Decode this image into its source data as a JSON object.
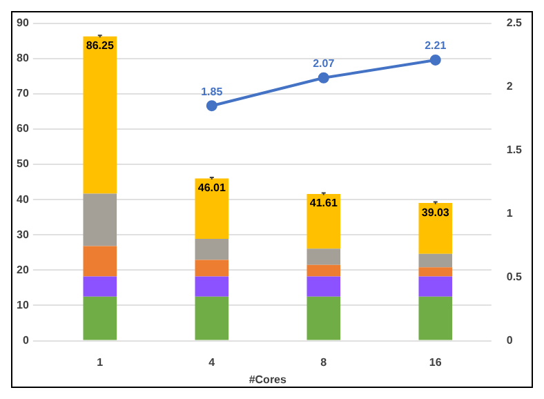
{
  "chart_data": {
    "type": "bar",
    "stacked": true,
    "xlabel": "#Cores",
    "categories": [
      "1",
      "4",
      "8",
      "16"
    ],
    "series": [
      {
        "color": "#70ad47",
        "values": [
          12.5,
          12.5,
          12.5,
          12.5
        ]
      },
      {
        "color": "#8c52ff",
        "values": [
          5.7,
          5.7,
          5.7,
          5.7
        ]
      },
      {
        "color": "#ed7d31",
        "values": [
          8.6,
          4.7,
          3.3,
          2.6
        ]
      },
      {
        "color": "#a5a097",
        "values": [
          14.9,
          6.0,
          4.6,
          3.8
        ]
      },
      {
        "color": "#ffc000",
        "values": [
          44.55,
          17.11,
          15.51,
          14.43
        ],
        "errors": [
          0.3,
          0.3,
          0.3,
          0.3
        ]
      },
      {
        "type": "line",
        "axis": "y2",
        "color": "#4472c4",
        "marker": "circle",
        "values": [
          null,
          1.85,
          2.07,
          2.21
        ],
        "value_labels": [
          null,
          "1.85",
          "2.07",
          "2.21"
        ]
      }
    ],
    "totals": [
      "86.25",
      "46.01",
      "41.61",
      "39.03"
    ],
    "ylim": [
      0,
      90
    ],
    "yticks": [
      0,
      10,
      20,
      30,
      40,
      50,
      60,
      70,
      80,
      90
    ],
    "y2lim": [
      0,
      2.5
    ],
    "y2ticks": [
      0,
      0.5,
      1,
      1.5,
      2,
      2.5
    ],
    "grid": "y",
    "legend": false
  }
}
